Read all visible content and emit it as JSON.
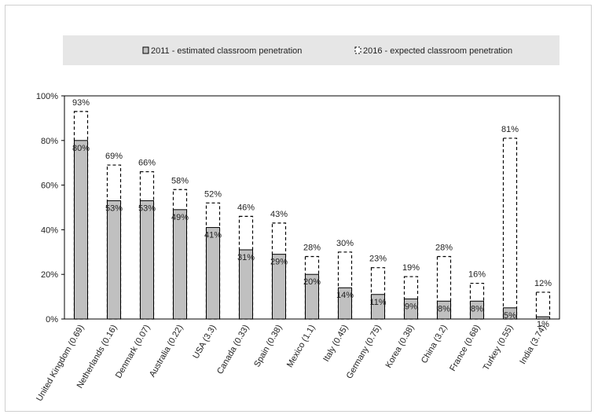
{
  "chart_data": {
    "type": "bar",
    "categories": [
      "United Kingdom (0.69)",
      "Netherlands (0.16)",
      "Denmark (0.07)",
      "Australia (0.22)",
      "USA (3.3)",
      "Canada (0.33)",
      "Spain (0.38)",
      "Mexico (1.1)",
      "Italy (0.45)",
      "Germany (0.75)",
      "Korea (0.38)",
      "China (3.2)",
      "France (0.68)",
      "Turkey (0.55)",
      "India (3.74)"
    ],
    "series": [
      {
        "name": "2011 - estimated classroom penetration",
        "values": [
          80,
          53,
          53,
          49,
          41,
          31,
          29,
          20,
          14,
          11,
          9,
          8,
          8,
          5,
          1
        ],
        "labels": [
          "80%",
          "53%",
          "53%",
          "49%",
          "41%",
          "31%",
          "29%",
          "20%",
          "14%",
          "11%",
          "9%",
          "8%",
          "8%",
          "5%",
          "1%"
        ],
        "color": "#c0c0c0",
        "style": "solid"
      },
      {
        "name": "2016 - expected classroom penetration",
        "values": [
          93,
          69,
          66,
          58,
          52,
          46,
          43,
          28,
          30,
          23,
          19,
          28,
          16,
          81,
          12
        ],
        "labels": [
          "93%",
          "69%",
          "66%",
          "58%",
          "52%",
          "46%",
          "43%",
          "28%",
          "30%",
          "23%",
          "19%",
          "28%",
          "16%",
          "81%",
          "12%"
        ],
        "color": "#000000",
        "style": "dashed"
      }
    ],
    "yticks": [
      "0%",
      "20%",
      "40%",
      "60%",
      "80%",
      "100%"
    ],
    "ylim": [
      0,
      100
    ],
    "grid": false,
    "legend_position": "top",
    "legend_background": "#e6e6e6"
  }
}
